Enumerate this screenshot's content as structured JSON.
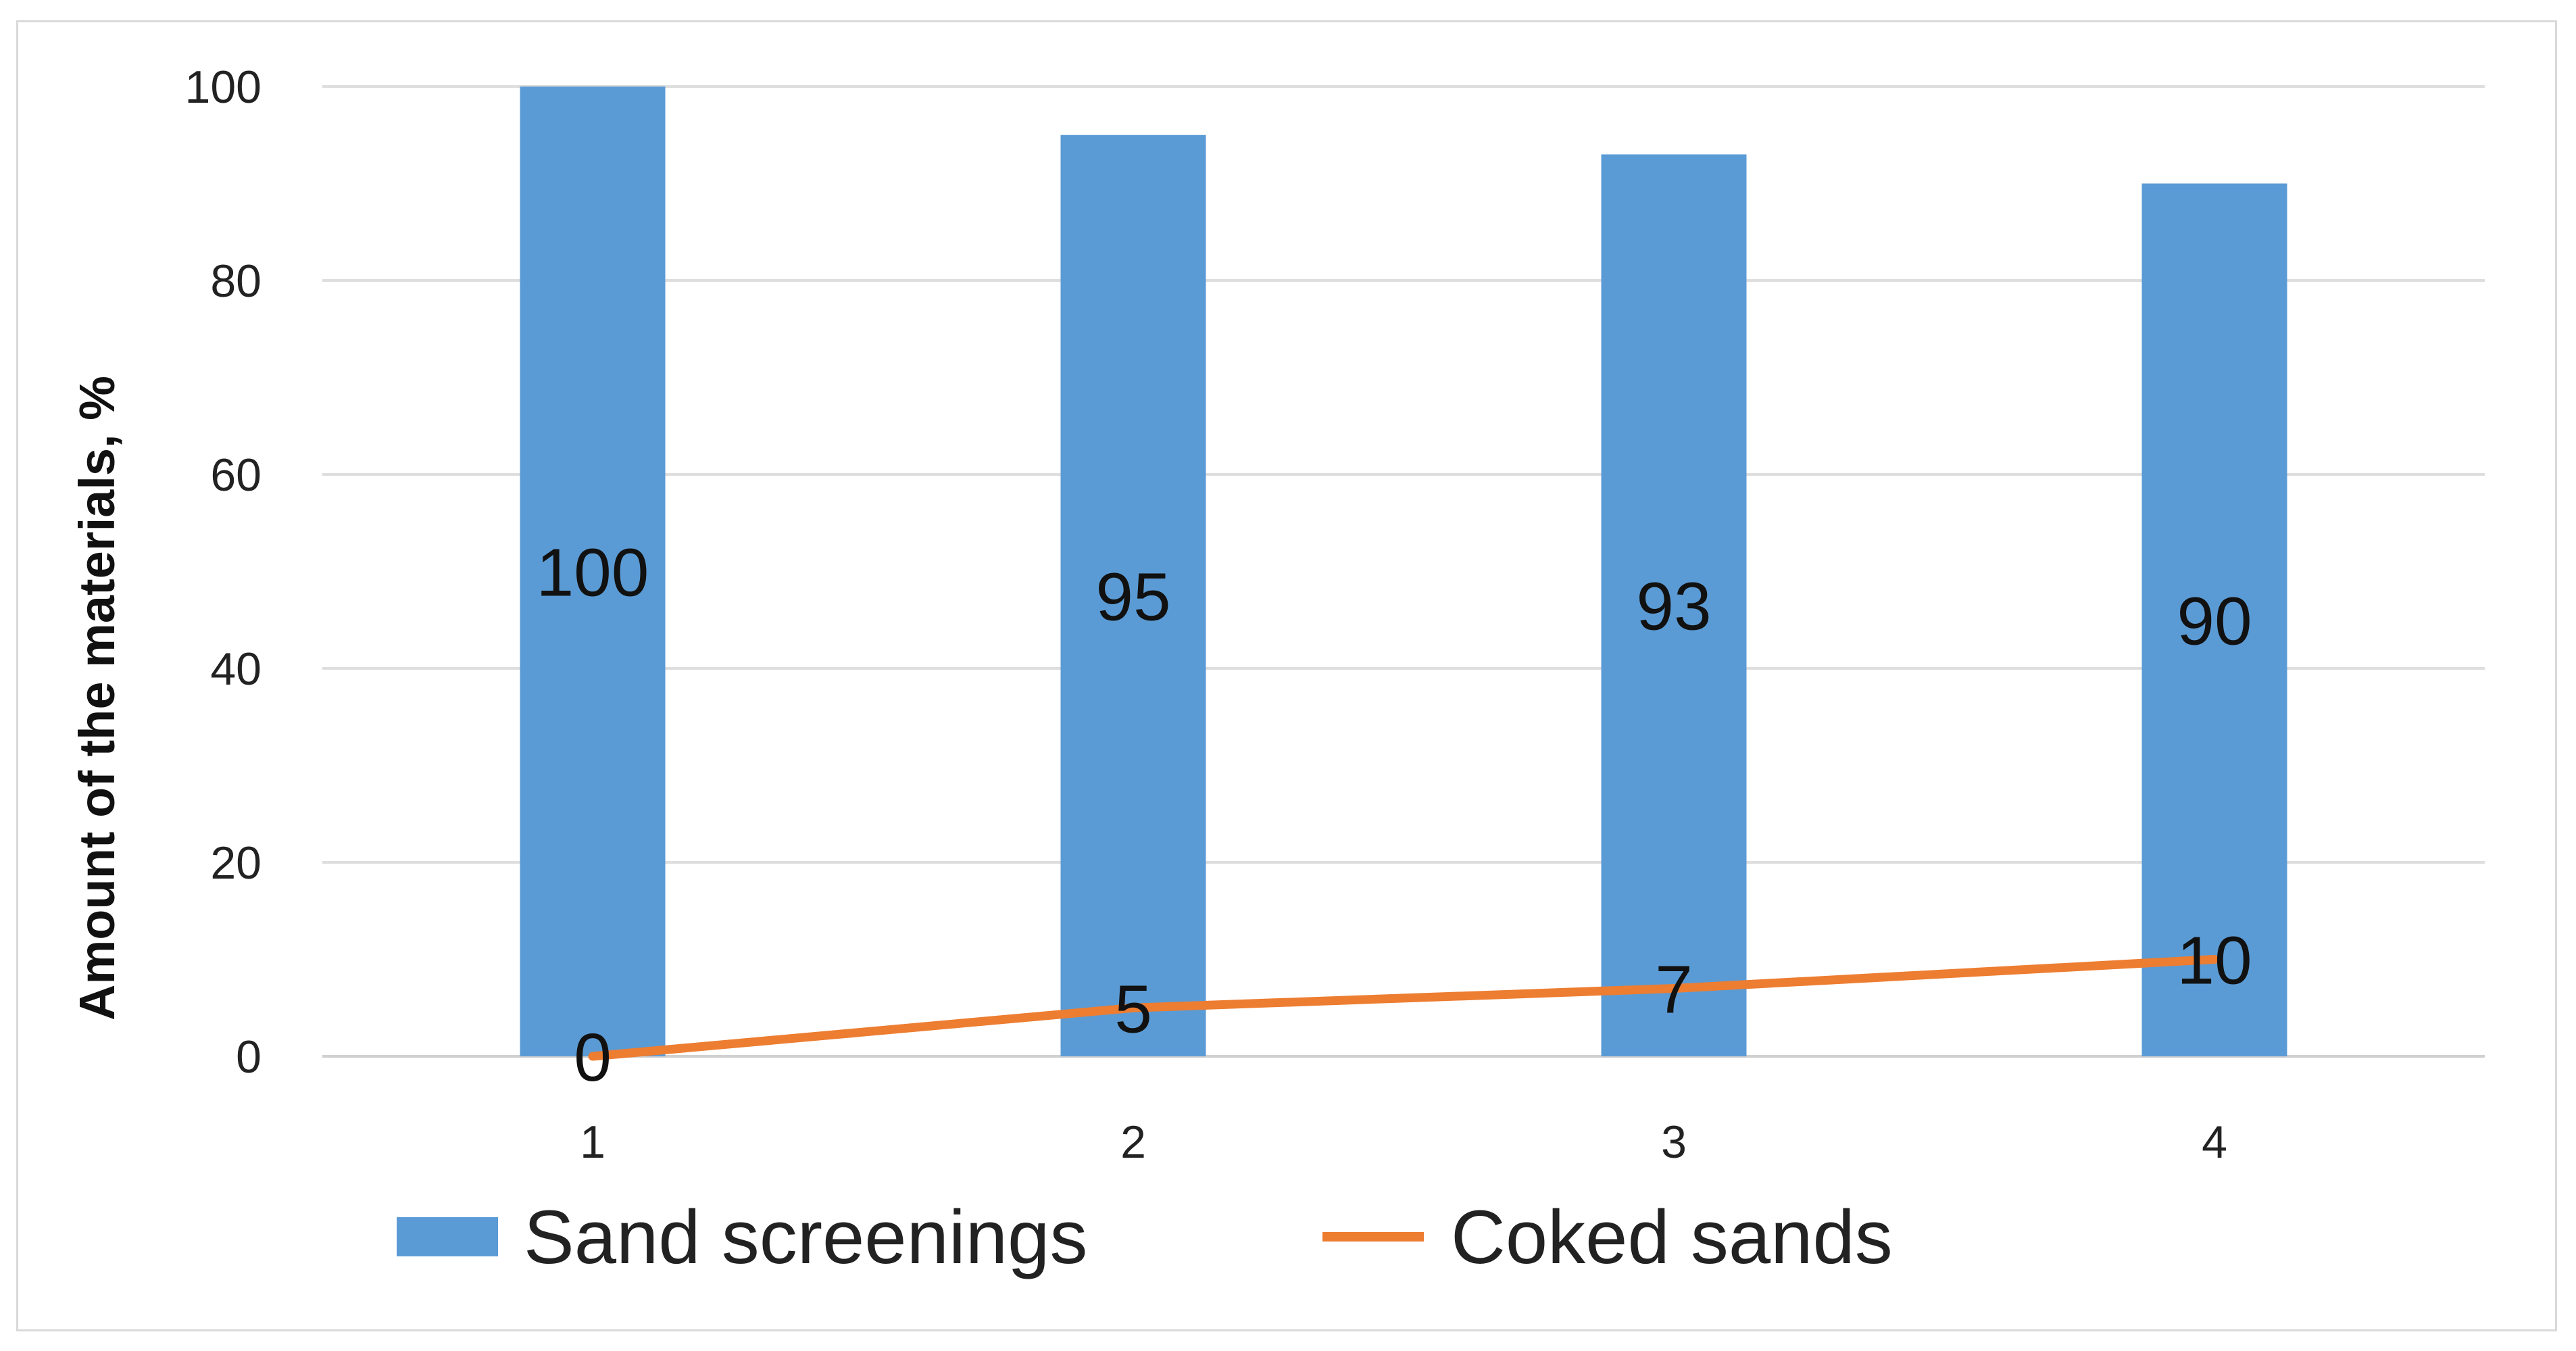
{
  "chart_data": {
    "type": "bar",
    "categories": [
      "1",
      "2",
      "3",
      "4"
    ],
    "ylabel": "Amount of the materials, %",
    "xlabel": "",
    "ylim": [
      0,
      100
    ],
    "yticks": [
      "0",
      "20",
      "40",
      "60",
      "80",
      "100"
    ],
    "grid": true,
    "legend_position": "bottom",
    "series": [
      {
        "name": "Sand screenings",
        "type": "bar",
        "color": "#5b9bd5",
        "values": [
          100,
          95,
          93,
          90
        ]
      },
      {
        "name": "Coked sands",
        "type": "line",
        "color": "#ed7d31",
        "values": [
          0,
          5,
          7,
          10
        ]
      }
    ]
  }
}
